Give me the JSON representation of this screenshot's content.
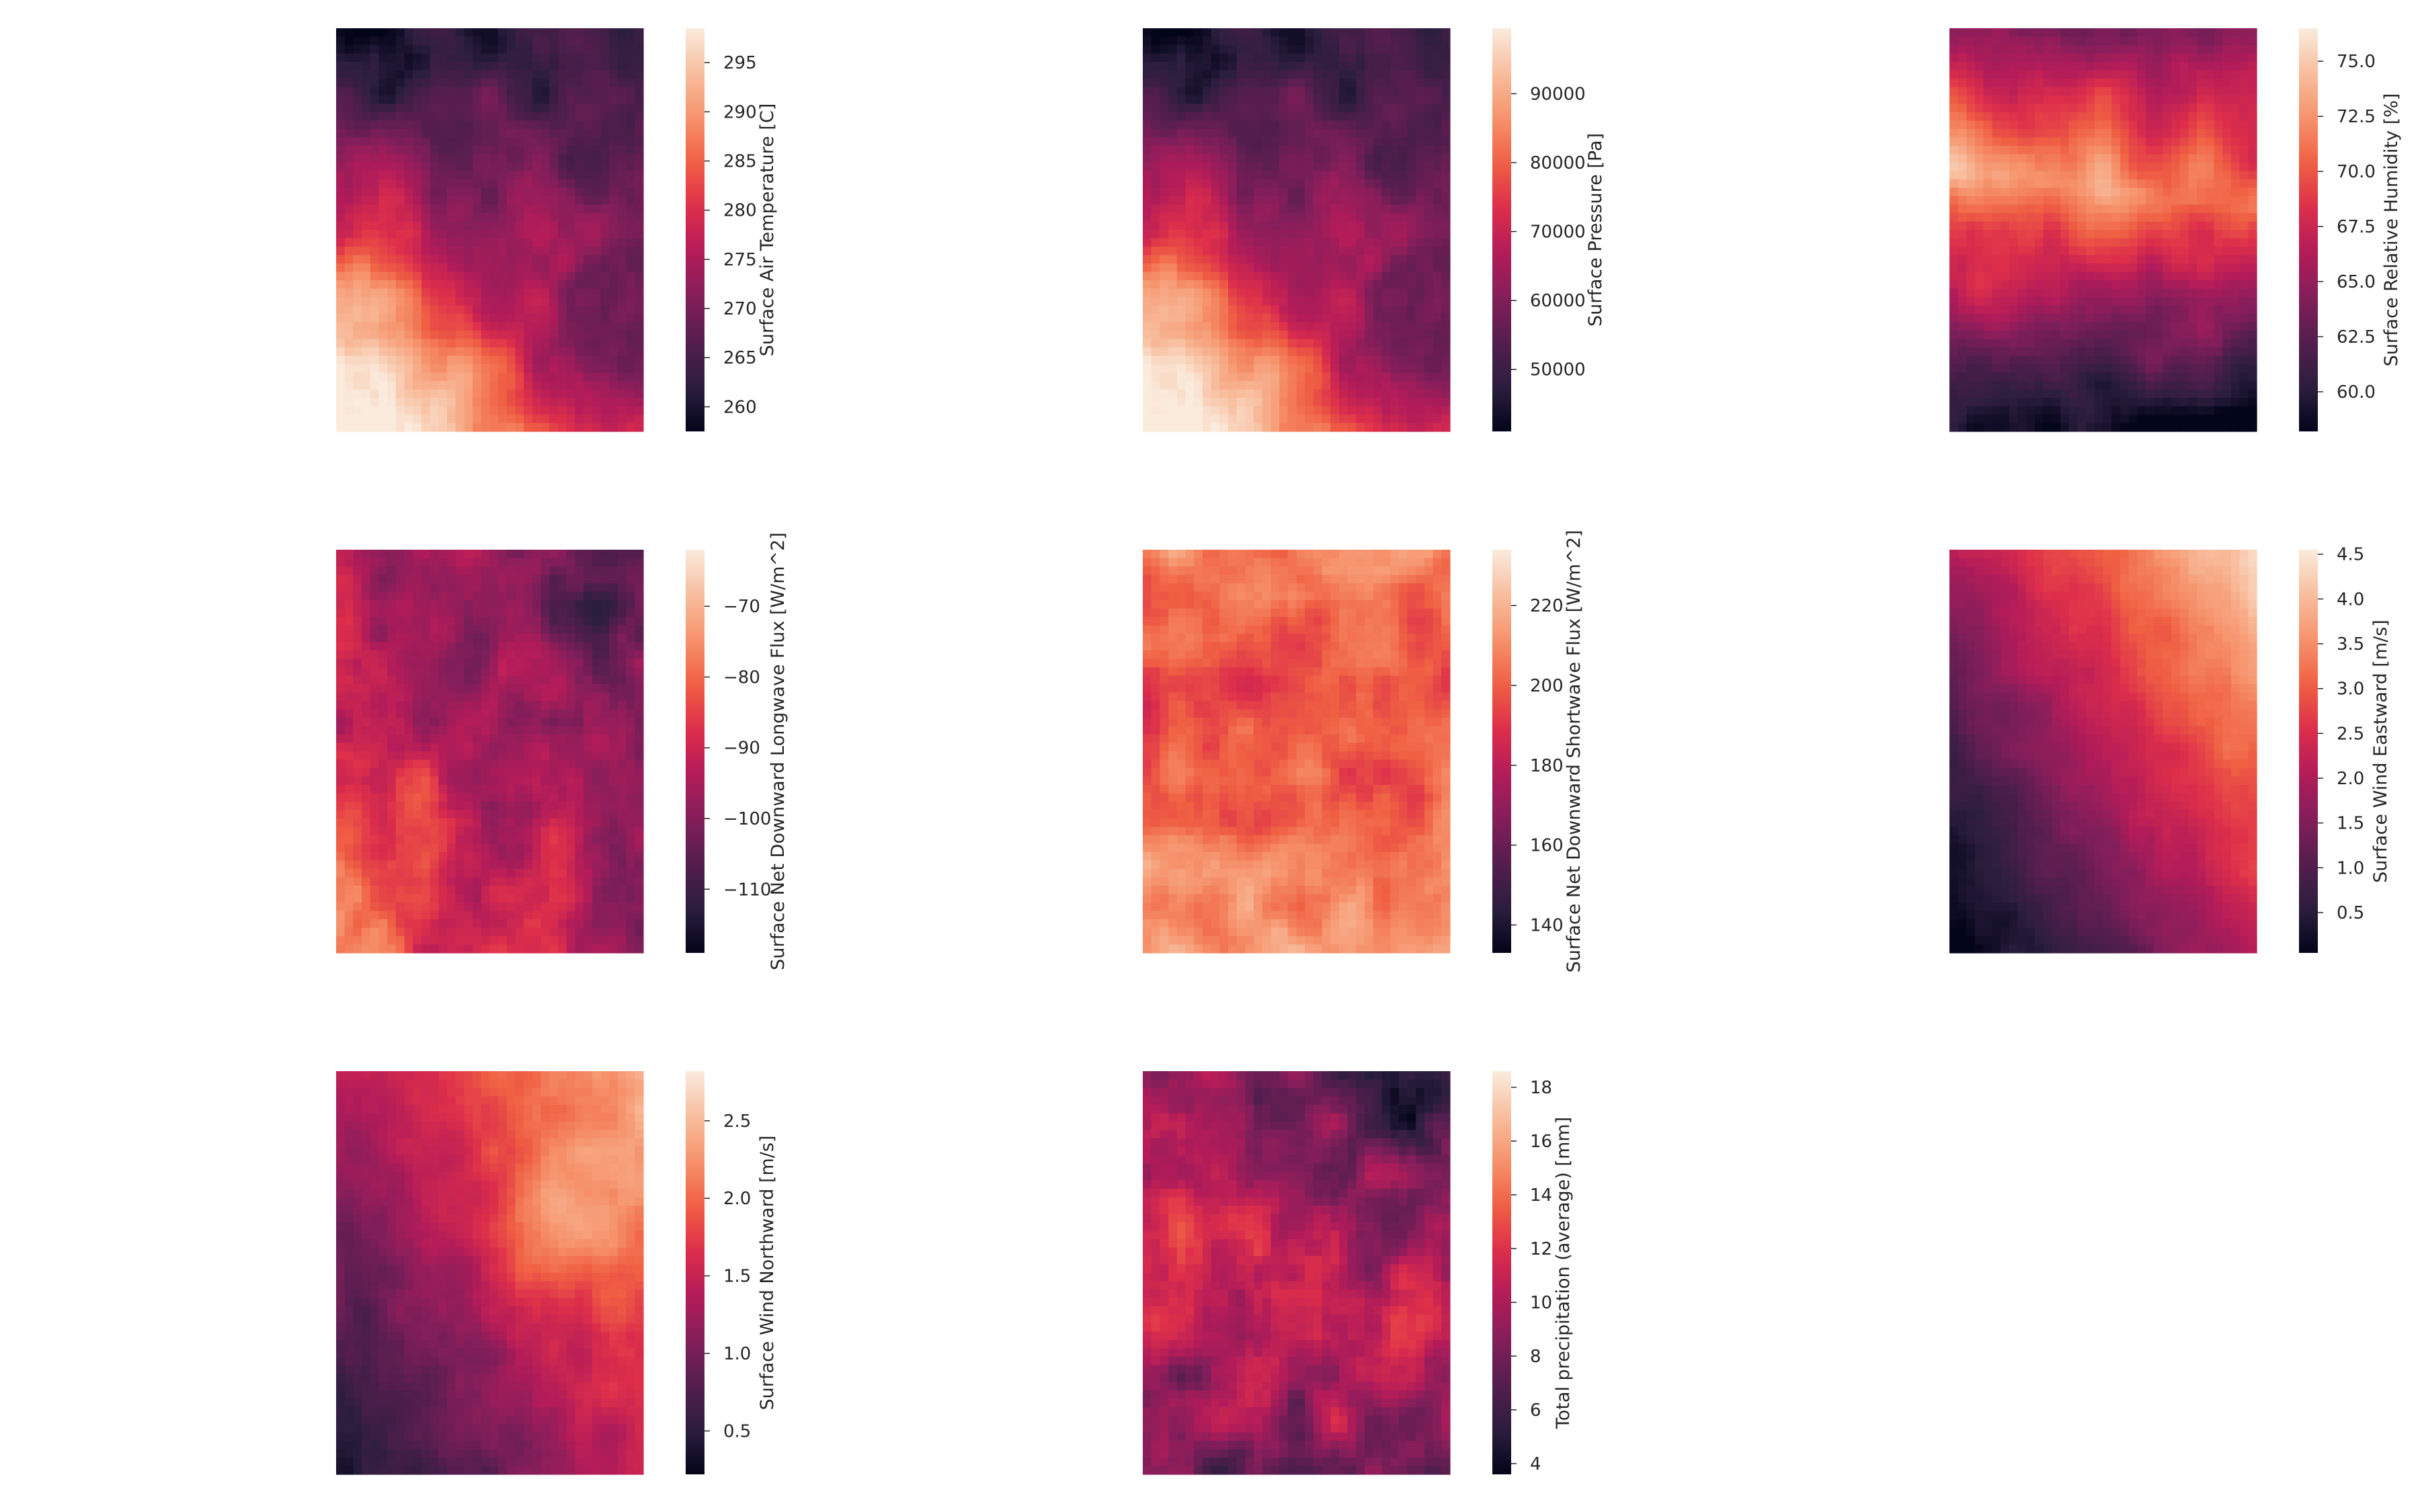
{
  "colormap": {
    "name": "rocket",
    "stops": [
      "#03051a",
      "#2c1e3e",
      "#541e4e",
      "#841e5a",
      "#b31c59",
      "#dd2e4b",
      "#f06043",
      "#f6936c",
      "#f8be9e",
      "#faebdd"
    ]
  },
  "chart_data": [
    {
      "type": "heatmap",
      "title": "",
      "xlabel": "",
      "ylabel": "",
      "colorbar": {
        "label": "Surface Air Temperature [C]",
        "range": [
          257.5,
          298.5
        ],
        "ticks": [
          260,
          265,
          270,
          275,
          280,
          285,
          290,
          295
        ],
        "tick_labels": [
          "260",
          "265",
          "270",
          "275",
          "280",
          "285",
          "290",
          "295"
        ]
      },
      "pattern": "terrain-high-nw"
    },
    {
      "type": "heatmap",
      "title": "",
      "xlabel": "",
      "ylabel": "",
      "colorbar": {
        "label": "Surface Pressure [Pa]",
        "range": [
          41000,
          99500
        ],
        "ticks": [
          50000,
          60000,
          70000,
          80000,
          90000
        ],
        "tick_labels": [
          "50000",
          "60000",
          "70000",
          "80000",
          "90000"
        ]
      },
      "pattern": "terrain-high-nw"
    },
    {
      "type": "heatmap",
      "title": "",
      "xlabel": "",
      "ylabel": "",
      "colorbar": {
        "label": "Surface Relative Humidity [%]",
        "range": [
          58.2,
          76.5
        ],
        "ticks": [
          60.0,
          62.5,
          65.0,
          67.5,
          70.0,
          72.5,
          75.0
        ],
        "tick_labels": [
          "60.0",
          "62.5",
          "65.0",
          "67.5",
          "70.0",
          "72.5",
          "75.0"
        ]
      },
      "pattern": "humidity-ridge"
    },
    {
      "type": "heatmap",
      "title": "",
      "xlabel": "",
      "ylabel": "",
      "colorbar": {
        "label": "Surface Net Downward Longwave Flux [W/m^2]",
        "range": [
          -119,
          -62
        ],
        "ticks": [
          -110,
          -100,
          -90,
          -80,
          -70
        ],
        "tick_labels": [
          "−110",
          "−100",
          "−90",
          "−80",
          "−70"
        ]
      },
      "pattern": "longwave-valleys"
    },
    {
      "type": "heatmap",
      "title": "",
      "xlabel": "",
      "ylabel": "",
      "colorbar": {
        "label": "Surface Net Downward Shortwave Flux [W/m^2]",
        "range": [
          133,
          234
        ],
        "ticks": [
          140,
          160,
          180,
          200,
          220
        ],
        "tick_labels": [
          "140",
          "160",
          "180",
          "200",
          "220"
        ]
      },
      "pattern": "shortwave-high"
    },
    {
      "type": "heatmap",
      "title": "",
      "xlabel": "",
      "ylabel": "",
      "colorbar": {
        "label": "Surface Wind Eastward [m/s]",
        "range": [
          0.05,
          4.55
        ],
        "ticks": [
          0.5,
          1.0,
          1.5,
          2.0,
          2.5,
          3.0,
          3.5,
          4.0,
          4.5
        ],
        "tick_labels": [
          "0.5",
          "1.0",
          "1.5",
          "2.0",
          "2.5",
          "3.0",
          "3.5",
          "4.0",
          "4.5"
        ]
      },
      "pattern": "gradient-ne"
    },
    {
      "type": "heatmap",
      "title": "",
      "xlabel": "",
      "ylabel": "",
      "colorbar": {
        "label": "Surface Wind Northward [m/s]",
        "range": [
          0.22,
          2.82
        ],
        "ticks": [
          0.5,
          1.0,
          1.5,
          2.0,
          2.5
        ],
        "tick_labels": [
          "0.5",
          "1.0",
          "1.5",
          "2.0",
          "2.5"
        ]
      },
      "pattern": "gradient-ne-blob"
    },
    {
      "type": "heatmap",
      "title": "",
      "xlabel": "",
      "ylabel": "",
      "colorbar": {
        "label": "Total precipitation (average) [mm]",
        "range": [
          3.6,
          18.6
        ],
        "ticks": [
          4,
          6,
          8,
          10,
          12,
          14,
          16,
          18
        ],
        "tick_labels": [
          "4",
          "6",
          "8",
          "10",
          "12",
          "14",
          "16",
          "18"
        ]
      },
      "pattern": "precip-ridges"
    }
  ]
}
